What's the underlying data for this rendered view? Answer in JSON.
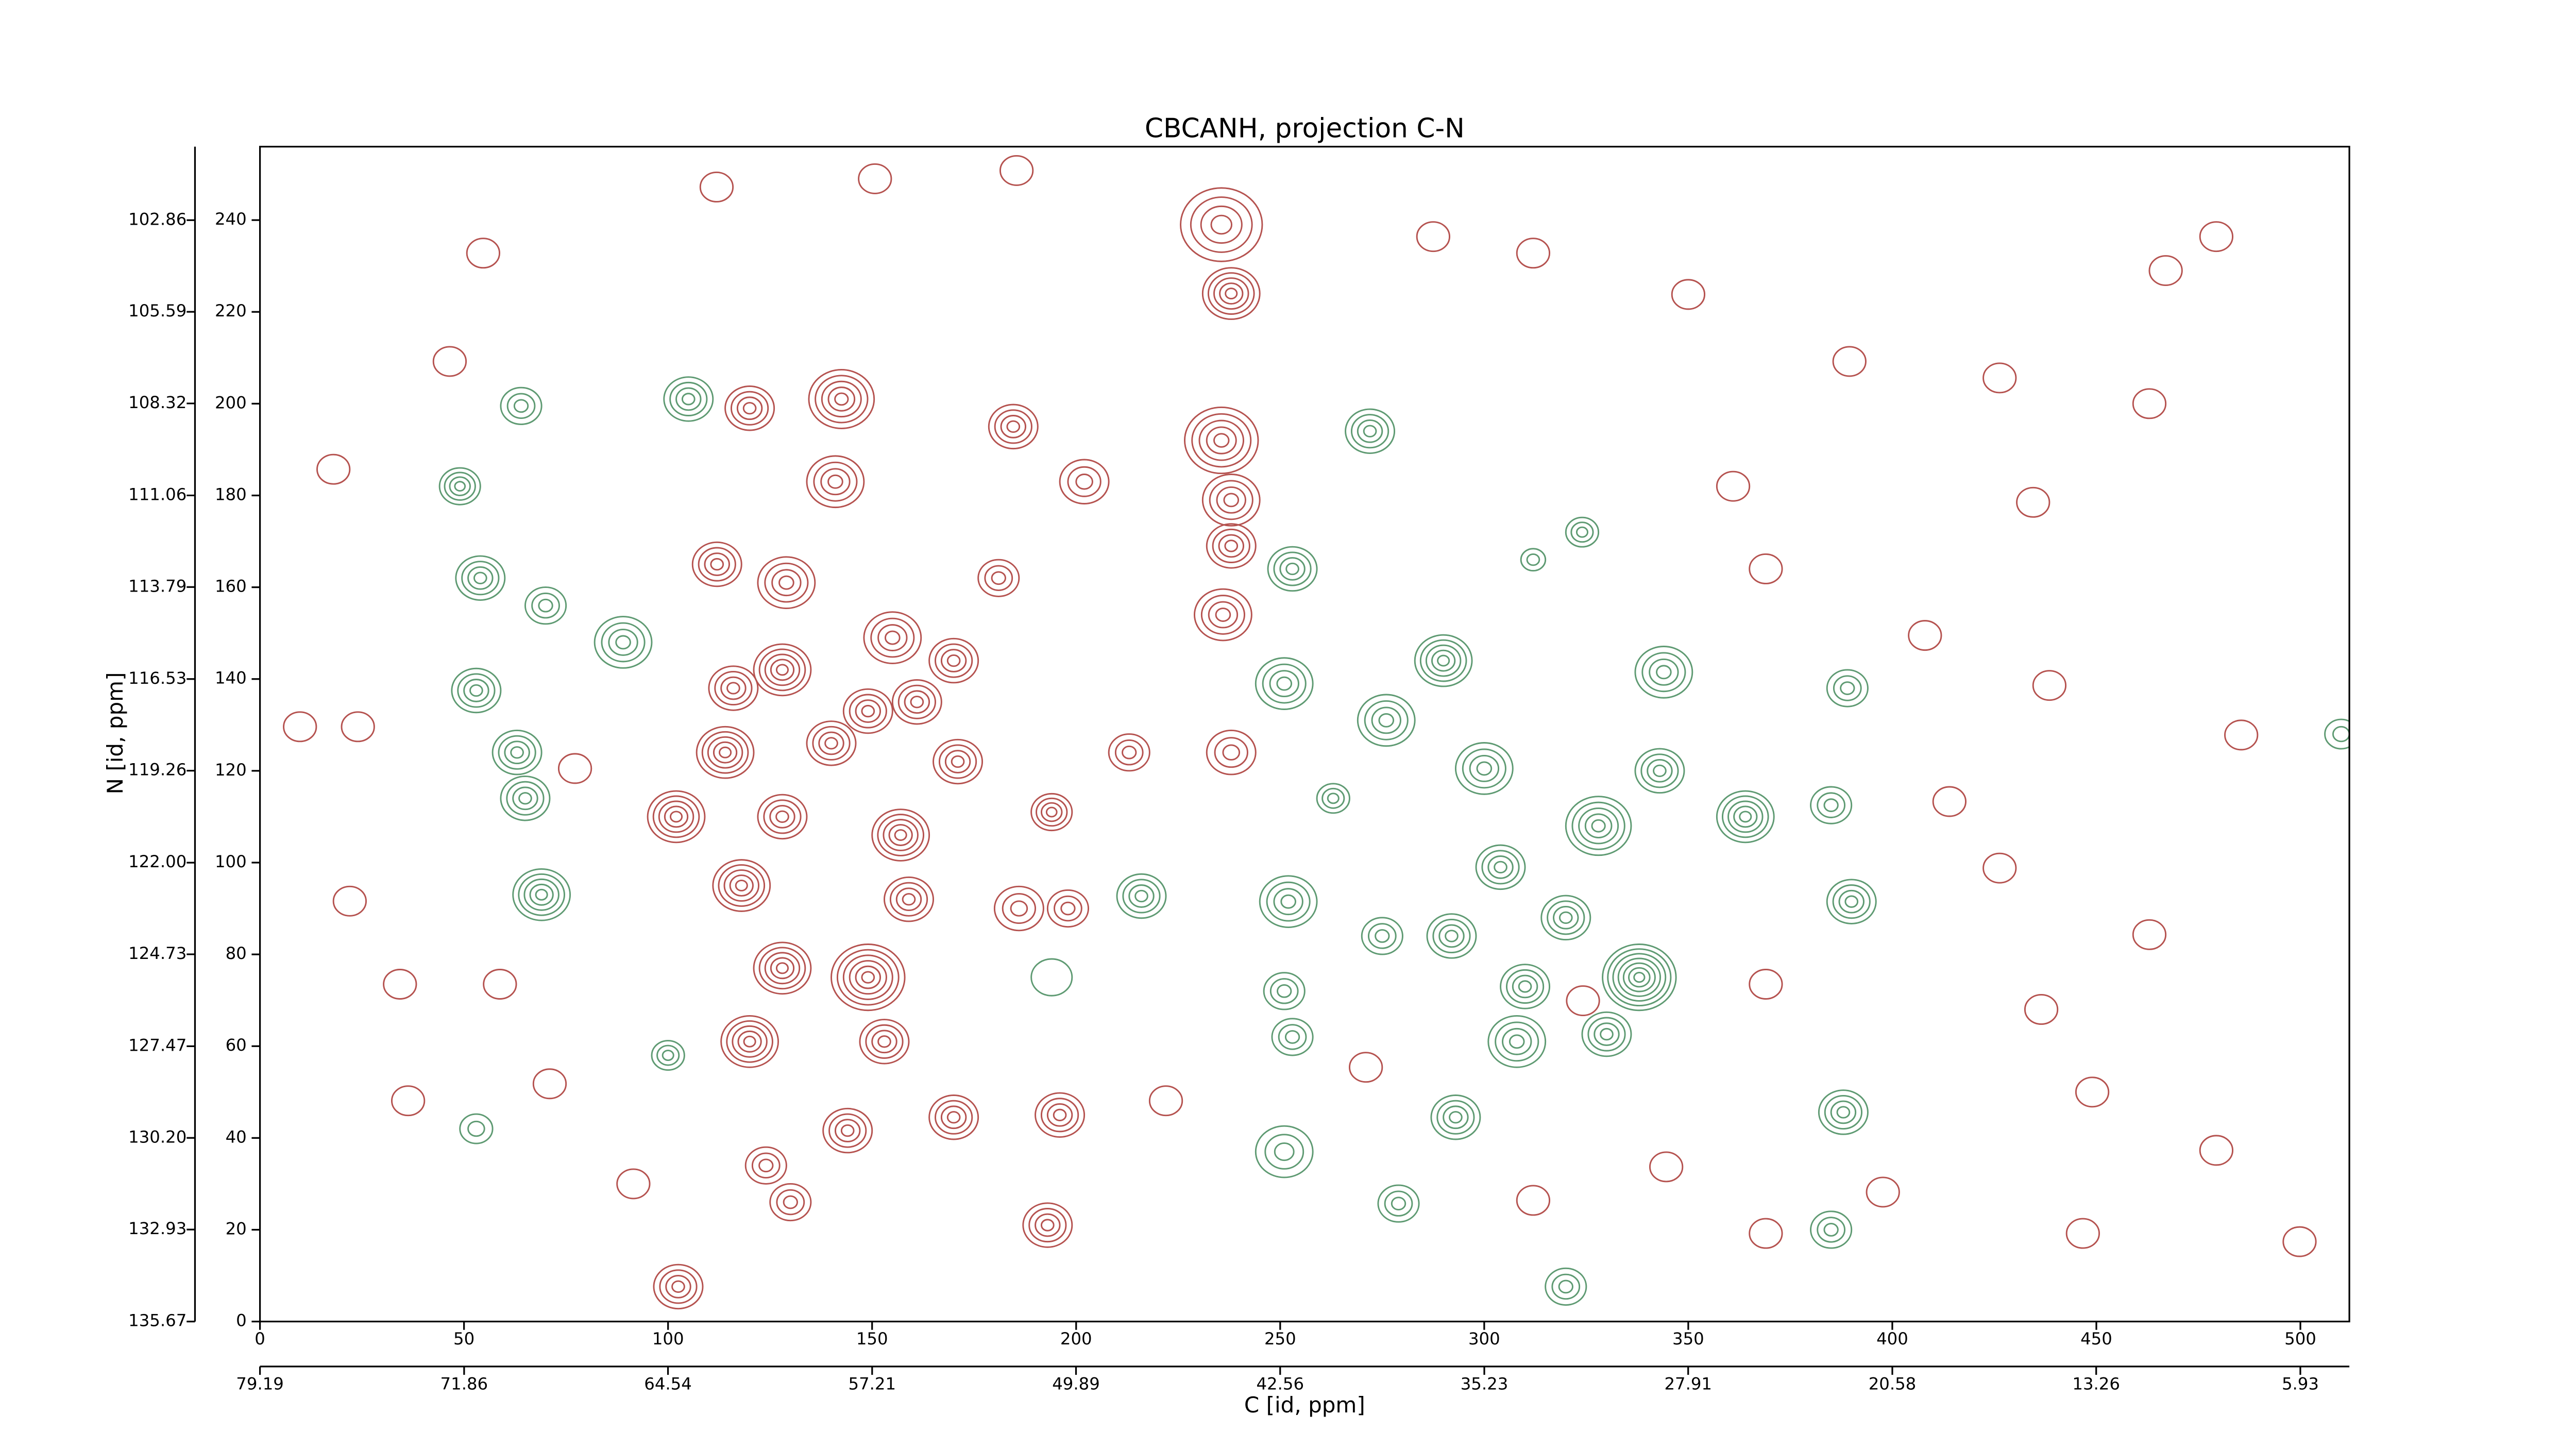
{
  "chart_data": {
    "type": "contour",
    "title": "CBCANH, projection C-N",
    "xlabel": "C [id, ppm]",
    "ylabel": "N [id, ppm]",
    "xlim": [
      0,
      512
    ],
    "ylim": [
      0,
      256
    ],
    "xticks": [
      0,
      50,
      100,
      150,
      200,
      250,
      300,
      350,
      400,
      450,
      500
    ],
    "yticks": [
      0,
      20,
      40,
      60,
      80,
      100,
      120,
      140,
      160,
      180,
      200,
      220,
      240
    ],
    "x2lim": [
      79.19,
      4.17
    ],
    "x2ticks": [
      79.19,
      71.86,
      64.54,
      57.21,
      49.89,
      42.56,
      35.23,
      27.91,
      20.58,
      13.26,
      5.93
    ],
    "y2lim": [
      135.67,
      100.67
    ],
    "y2ticks": [
      135.67,
      132.93,
      {
        "value": 130.2,
        "label": "130.20"
      },
      127.47,
      124.73,
      {
        "value": 122,
        "label": "122.00"
      },
      119.26,
      116.53,
      113.79,
      111.06,
      108.32,
      105.59,
      102.86
    ],
    "series": [
      {
        "color": "#b5524f",
        "x": [
          235.6,
          238,
          235.6,
          238,
          238,
          236,
          142.5,
          120,
          141,
          184.6,
          202,
          112,
          129,
          155,
          128,
          170,
          181,
          116,
          149,
          161,
          114,
          140,
          171,
          102,
          128,
          157,
          194,
          213,
          118,
          159,
          186,
          198,
          149,
          128,
          120,
          153,
          170,
          196,
          144,
          124,
          130,
          193,
          102.5,
          238,
          111.9,
          185.4,
          150.7,
          312,
          350,
          434.5,
          467,
          479.4,
          426.3,
          389.5,
          463,
          361,
          369,
          408,
          438.5,
          485.5,
          414,
          436.5,
          449,
          479.4,
          446.7,
          499.8,
          397.7,
          369,
          312,
          271,
          222,
          71,
          36.3,
          9.8,
          24,
          91.5,
          58.8,
          34.3,
          426.3,
          463,
          369,
          54.7,
          46.5,
          18,
          22,
          77.2,
          287.5,
          324.2,
          344.6
        ],
        "y": [
          239,
          224,
          192,
          179,
          169,
          154,
          201,
          199,
          183,
          195,
          183,
          165,
          161,
          149,
          142,
          144,
          162,
          138,
          133,
          135,
          124,
          126,
          122,
          110,
          110,
          106,
          111,
          124,
          95,
          92,
          90,
          90,
          75,
          77,
          61,
          61,
          44.5,
          45,
          41.6,
          34,
          26,
          21,
          7.6,
          124,
          247.2,
          250.8,
          249,
          232.8,
          223.8,
          178.5,
          229,
          236.4,
          205.6,
          209.2,
          200,
          182,
          164,
          149.5,
          138.6,
          127.8,
          113.3,
          68,
          50,
          37.3,
          19.2,
          17.4,
          28.2,
          19.2,
          26.4,
          55.4,
          48.1,
          51.8,
          48.1,
          129.6,
          129.6,
          30,
          73.5,
          73.5,
          98.8,
          84.3,
          73.5,
          232.8,
          209.2,
          185.7,
          91.6,
          120.5,
          236.4,
          69.9,
          33.7
        ],
        "size": [
          10,
          7,
          9,
          7,
          6,
          7,
          8,
          6,
          7,
          6,
          6,
          6,
          7,
          7,
          7,
          6,
          5,
          6,
          6,
          6,
          7,
          6,
          6,
          7,
          6,
          7,
          5,
          5,
          7,
          6,
          6,
          5,
          9,
          7,
          7,
          6,
          6,
          6,
          6,
          5,
          5,
          6,
          6,
          6,
          4,
          4,
          4,
          4,
          4,
          4,
          4,
          4,
          4,
          4,
          4,
          4,
          4,
          4,
          4,
          4,
          4,
          4,
          4,
          4,
          4,
          4,
          4,
          4,
          4,
          4,
          4,
          4,
          4,
          4,
          4,
          4,
          4,
          4,
          4,
          4,
          4,
          4,
          4,
          4,
          4,
          4,
          4,
          4,
          4
        ],
        "levels": [
          4,
          5,
          5,
          4,
          4,
          4,
          5,
          4,
          4,
          4,
          3,
          4,
          4,
          4,
          5,
          4,
          3,
          4,
          4,
          4,
          5,
          4,
          4,
          5,
          4,
          5,
          4,
          3,
          5,
          4,
          3,
          3,
          6,
          5,
          5,
          4,
          4,
          4,
          4,
          3,
          3,
          4,
          4,
          3,
          1,
          1,
          1,
          1,
          1,
          1,
          1,
          1,
          1,
          1,
          1,
          1,
          1,
          1,
          1,
          1,
          1,
          1,
          1,
          1,
          1,
          1,
          1,
          1,
          1,
          1,
          1,
          1,
          1,
          1,
          1,
          1,
          1,
          1,
          1,
          1,
          1,
          1,
          1,
          1,
          1,
          1,
          1,
          1,
          1
        ]
      },
      {
        "color": "#5e9a72",
        "x": [
          64,
          105,
          49,
          54,
          70,
          89,
          53,
          63,
          65,
          69,
          100,
          53,
          272,
          253,
          324,
          312,
          251,
          290,
          344,
          276,
          300,
          343,
          328,
          364,
          385,
          389,
          263,
          252,
          304,
          320,
          292,
          338,
          310,
          275,
          251,
          308,
          330,
          253,
          390,
          216,
          388,
          293,
          251,
          279,
          385,
          320,
          510,
          194
        ],
        "y": [
          199.5,
          201,
          182,
          162,
          156,
          148,
          137.5,
          124,
          114,
          93,
          58,
          42,
          194,
          164,
          172,
          166,
          139,
          144,
          141.5,
          131,
          120.5,
          120,
          108,
          110,
          112.5,
          138,
          114,
          91.5,
          99,
          88,
          84,
          75,
          73,
          84,
          72,
          61,
          62.6,
          62,
          91.5,
          92.7,
          45.6,
          44.5,
          37,
          25.7,
          20,
          7.6,
          128,
          75
        ],
        "size": [
          5,
          6,
          5,
          6,
          5,
          7,
          6,
          6,
          6,
          7,
          4,
          4,
          6,
          6,
          4,
          3,
          7,
          7,
          7,
          7,
          7,
          6,
          8,
          7,
          5,
          5,
          4,
          7,
          6,
          6,
          6,
          9,
          6,
          5,
          5,
          7,
          6,
          5,
          6,
          6,
          6,
          6,
          7,
          5,
          5,
          5,
          4,
          5
        ],
        "levels": [
          3,
          4,
          4,
          4,
          3,
          4,
          4,
          4,
          4,
          5,
          3,
          2,
          4,
          4,
          3,
          2,
          4,
          5,
          4,
          4,
          4,
          4,
          5,
          5,
          3,
          3,
          3,
          4,
          4,
          4,
          4,
          7,
          4,
          3,
          3,
          4,
          4,
          3,
          4,
          4,
          4,
          4,
          3,
          3,
          3,
          3,
          2,
          1
        ]
      }
    ]
  }
}
